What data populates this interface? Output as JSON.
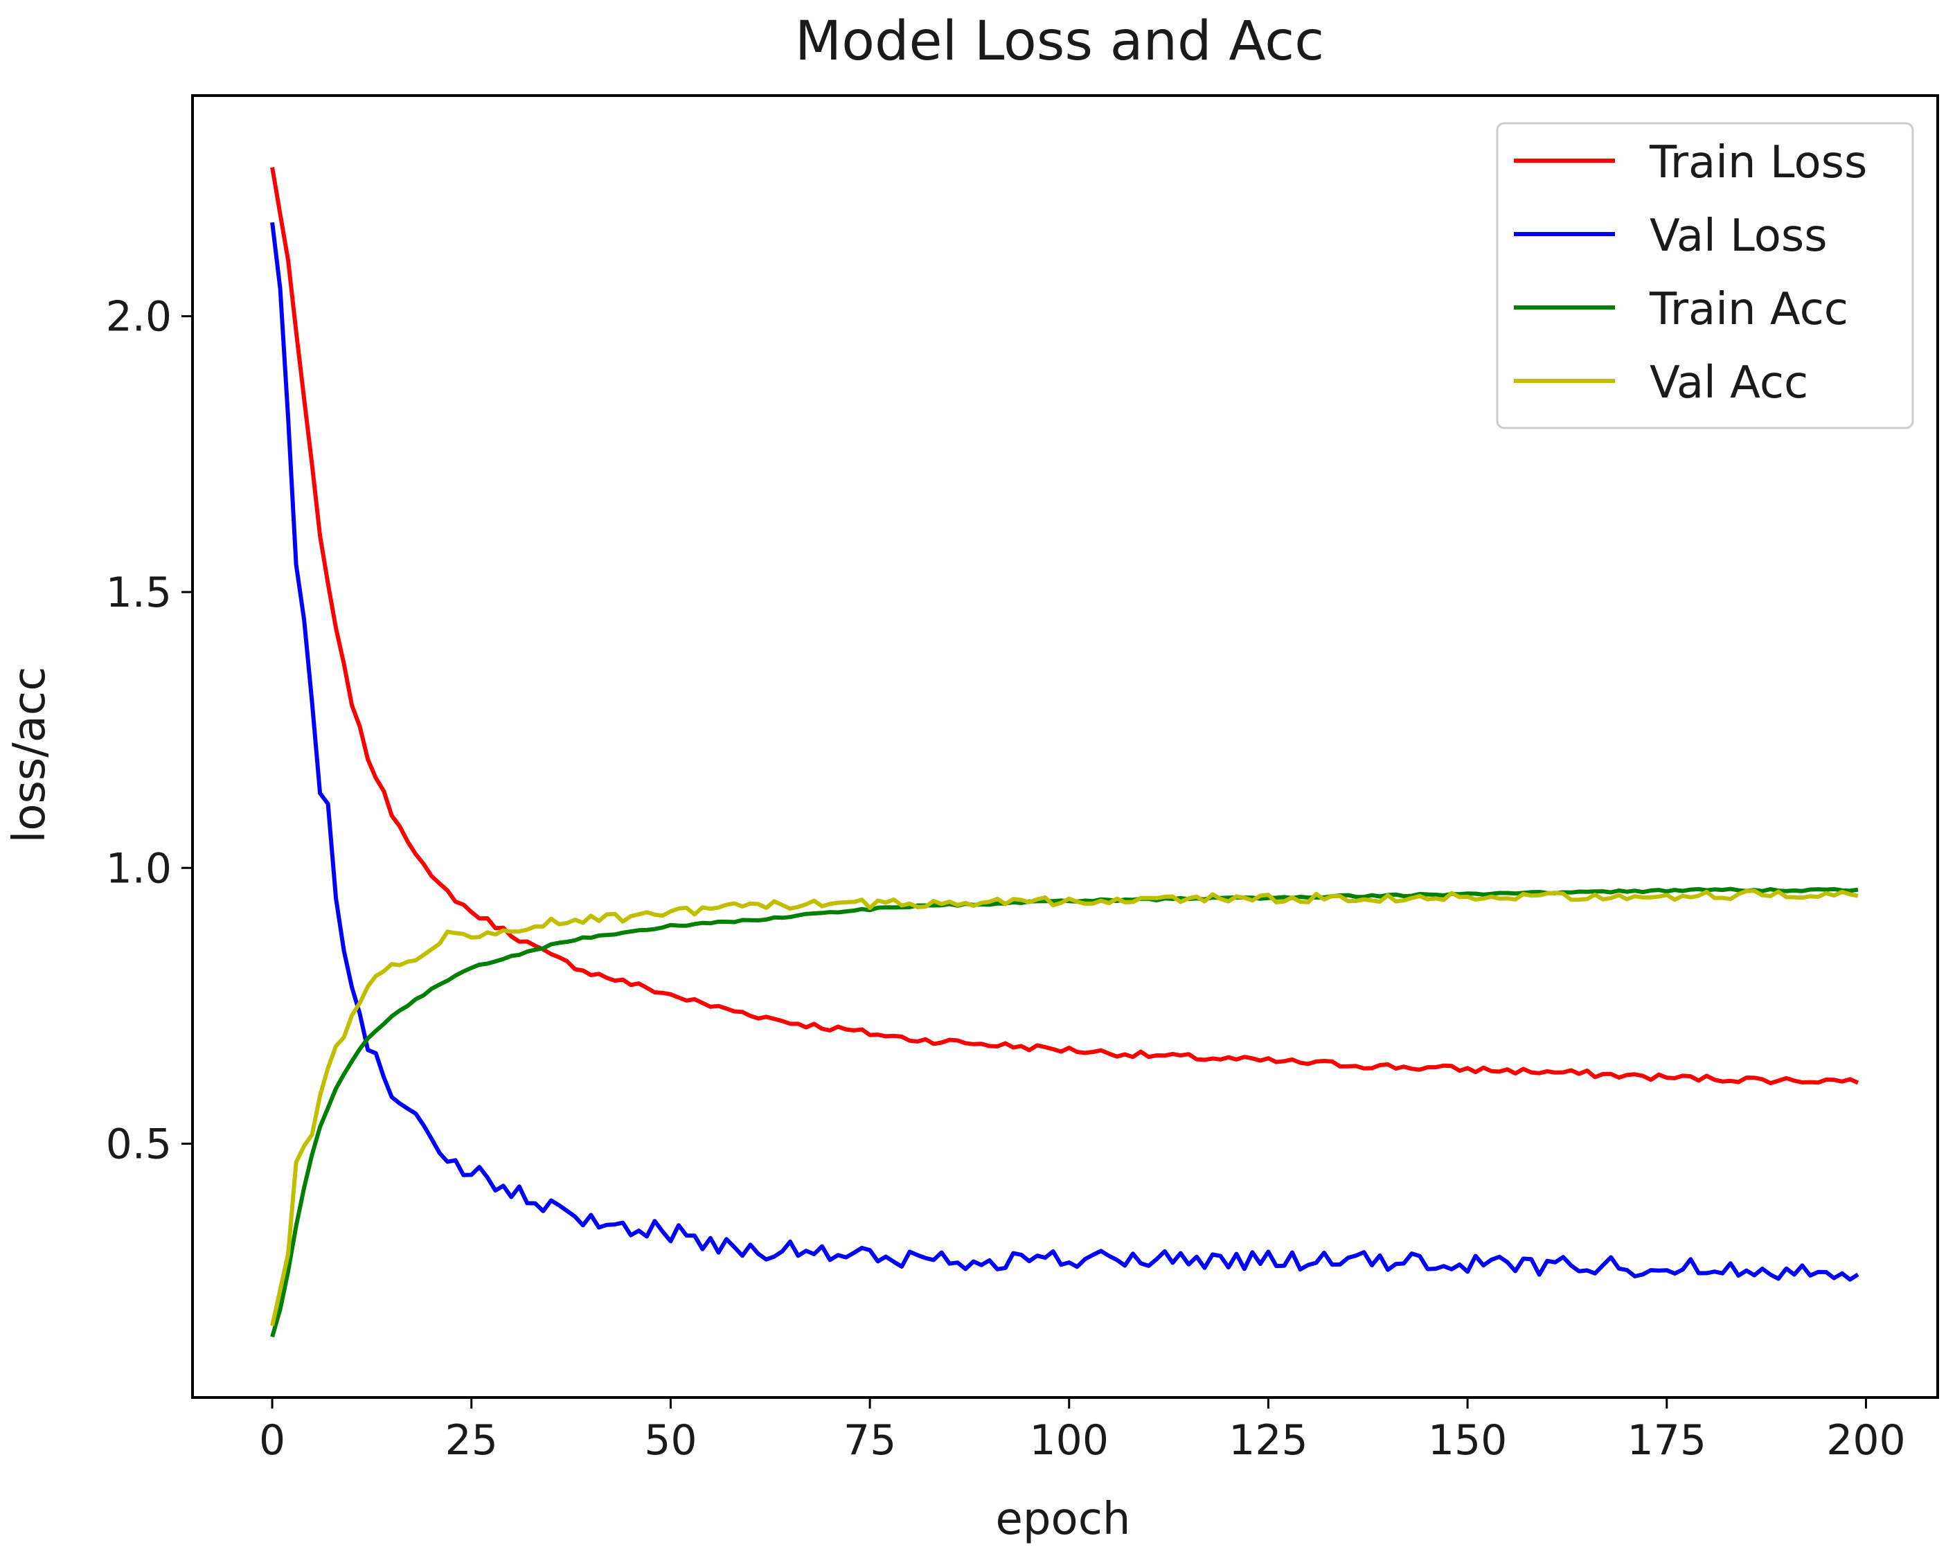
{
  "chart_data": {
    "type": "line",
    "title": "Model Loss and Acc",
    "xlabel": "epoch",
    "ylabel": "loss/acc",
    "xlim": [
      -10,
      209
    ],
    "ylim": [
      0.04,
      2.4
    ],
    "grid": false,
    "legend_position": "top-right",
    "x_ticks": [
      0,
      25,
      50,
      75,
      100,
      125,
      150,
      175,
      200
    ],
    "y_ticks": [
      0.5,
      1.0,
      1.5,
      2.0
    ],
    "x_tick_labels": [
      "0",
      "25",
      "50",
      "75",
      "100",
      "125",
      "150",
      "175",
      "200"
    ],
    "y_tick_labels": [
      "0.5",
      "1.0",
      "1.5",
      "2.0"
    ],
    "epochs": [
      0,
      199
    ],
    "series": [
      {
        "name": "Train Loss",
        "color": "#ff0000",
        "points": [
          [
            0,
            2.27
          ],
          [
            2,
            2.1
          ],
          [
            4,
            1.85
          ],
          [
            6,
            1.6
          ],
          [
            8,
            1.43
          ],
          [
            10,
            1.3
          ],
          [
            12,
            1.2
          ],
          [
            15,
            1.1
          ],
          [
            18,
            1.03
          ],
          [
            20,
            0.98
          ],
          [
            25,
            0.92
          ],
          [
            30,
            0.88
          ],
          [
            35,
            0.84
          ],
          [
            40,
            0.81
          ],
          [
            45,
            0.79
          ],
          [
            50,
            0.77
          ],
          [
            55,
            0.75
          ],
          [
            60,
            0.735
          ],
          [
            65,
            0.72
          ],
          [
            70,
            0.71
          ],
          [
            75,
            0.7
          ],
          [
            80,
            0.69
          ],
          [
            90,
            0.68
          ],
          [
            100,
            0.67
          ],
          [
            110,
            0.66
          ],
          [
            125,
            0.65
          ],
          [
            140,
            0.64
          ],
          [
            150,
            0.635
          ],
          [
            160,
            0.63
          ],
          [
            175,
            0.62
          ],
          [
            190,
            0.615
          ],
          [
            199,
            0.615
          ]
        ],
        "noise": 0.006
      },
      {
        "name": "Val Loss",
        "color": "#0000ff",
        "points": [
          [
            0,
            2.17
          ],
          [
            1,
            2.05
          ],
          [
            2,
            1.8
          ],
          [
            3,
            1.55
          ],
          [
            4,
            1.45
          ],
          [
            5,
            1.3
          ],
          [
            6,
            1.15
          ],
          [
            7,
            1.13
          ],
          [
            8,
            0.95
          ],
          [
            10,
            0.78
          ],
          [
            12,
            0.68
          ],
          [
            14,
            0.62
          ],
          [
            16,
            0.58
          ],
          [
            20,
            0.52
          ],
          [
            22,
            0.46
          ],
          [
            25,
            0.45
          ],
          [
            28,
            0.42
          ],
          [
            30,
            0.41
          ],
          [
            32,
            0.4
          ],
          [
            35,
            0.38
          ],
          [
            40,
            0.36
          ],
          [
            45,
            0.35
          ],
          [
            50,
            0.34
          ],
          [
            55,
            0.32
          ],
          [
            60,
            0.31
          ],
          [
            70,
            0.3
          ],
          [
            80,
            0.29
          ],
          [
            100,
            0.29
          ],
          [
            120,
            0.29
          ],
          [
            140,
            0.285
          ],
          [
            160,
            0.28
          ],
          [
            180,
            0.275
          ],
          [
            199,
            0.27
          ]
        ],
        "noise": 0.018
      },
      {
        "name": "Train Acc",
        "color": "#008000",
        "points": [
          [
            0,
            0.15
          ],
          [
            1,
            0.2
          ],
          [
            2,
            0.27
          ],
          [
            3,
            0.35
          ],
          [
            4,
            0.42
          ],
          [
            5,
            0.48
          ],
          [
            6,
            0.53
          ],
          [
            8,
            0.6
          ],
          [
            10,
            0.65
          ],
          [
            12,
            0.69
          ],
          [
            15,
            0.73
          ],
          [
            20,
            0.78
          ],
          [
            25,
            0.82
          ],
          [
            30,
            0.84
          ],
          [
            35,
            0.86
          ],
          [
            40,
            0.875
          ],
          [
            45,
            0.885
          ],
          [
            50,
            0.895
          ],
          [
            60,
            0.905
          ],
          [
            70,
            0.92
          ],
          [
            80,
            0.93
          ],
          [
            90,
            0.935
          ],
          [
            100,
            0.94
          ],
          [
            120,
            0.945
          ],
          [
            140,
            0.95
          ],
          [
            160,
            0.955
          ],
          [
            180,
            0.96
          ],
          [
            199,
            0.96
          ]
        ],
        "noise": 0.002
      },
      {
        "name": "Val Acc",
        "color": "#bfbf00",
        "points": [
          [
            0,
            0.17
          ],
          [
            2,
            0.3
          ],
          [
            3,
            0.46
          ],
          [
            5,
            0.52
          ],
          [
            7,
            0.64
          ],
          [
            9,
            0.7
          ],
          [
            11,
            0.76
          ],
          [
            13,
            0.8
          ],
          [
            15,
            0.82
          ],
          [
            18,
            0.84
          ],
          [
            20,
            0.85
          ],
          [
            22,
            0.89
          ],
          [
            25,
            0.87
          ],
          [
            28,
            0.88
          ],
          [
            30,
            0.885
          ],
          [
            35,
            0.9
          ],
          [
            40,
            0.91
          ],
          [
            45,
            0.91
          ],
          [
            50,
            0.92
          ],
          [
            55,
            0.925
          ],
          [
            60,
            0.93
          ],
          [
            70,
            0.935
          ],
          [
            80,
            0.935
          ],
          [
            90,
            0.94
          ],
          [
            100,
            0.94
          ],
          [
            120,
            0.945
          ],
          [
            140,
            0.945
          ],
          [
            160,
            0.95
          ],
          [
            180,
            0.95
          ],
          [
            199,
            0.955
          ]
        ],
        "noise": 0.008
      }
    ]
  }
}
